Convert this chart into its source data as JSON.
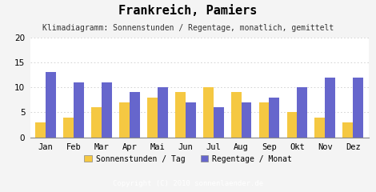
{
  "title": "Frankreich, Pamiers",
  "subtitle": "Klimadiagramm: Sonnenstunden / Regentage, monatlich, gemittelt",
  "months": [
    "Jan",
    "Feb",
    "Mar",
    "Apr",
    "Mai",
    "Jun",
    "Jul",
    "Aug",
    "Sep",
    "Okt",
    "Nov",
    "Dez"
  ],
  "sonnenstunden": [
    3,
    4,
    6,
    7,
    8,
    9,
    10,
    9,
    7,
    5,
    4,
    3
  ],
  "regentage": [
    13,
    11,
    11,
    9,
    10,
    7,
    6,
    7,
    8,
    10,
    12,
    12
  ],
  "bar_color_sonne": "#F5C842",
  "bar_color_regen": "#6666CC",
  "ylim": [
    0,
    20
  ],
  "yticks": [
    0,
    5,
    10,
    15,
    20
  ],
  "legend_sonne": "Sonnenstunden / Tag",
  "legend_regen": "Regentage / Monat",
  "copyright": "Copyright (C) 2010 sonnenlaender.de",
  "bg_color": "#f4f4f4",
  "plot_bg_color": "#ffffff",
  "copyright_bg": "#aaaaaa",
  "title_fontsize": 11,
  "subtitle_fontsize": 7,
  "axis_fontsize": 7.5,
  "legend_fontsize": 7,
  "copyright_fontsize": 6.5
}
